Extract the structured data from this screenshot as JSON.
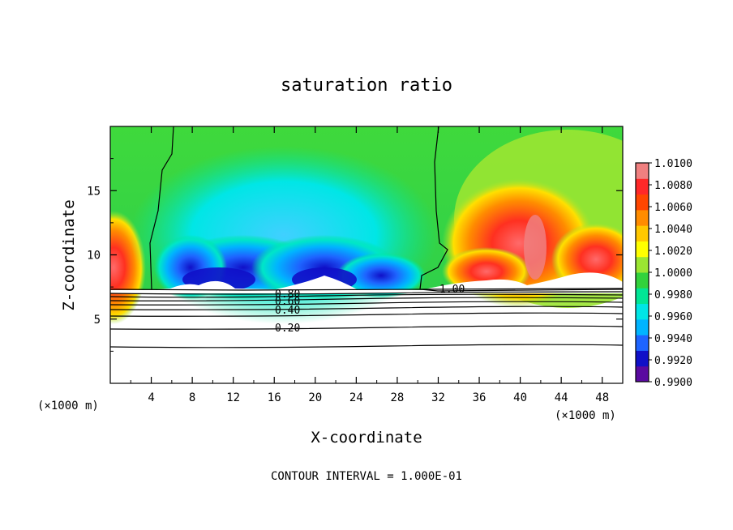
{
  "chart_data": {
    "type": "heatmap",
    "title": "saturation ratio",
    "xlabel": "X-coordinate",
    "ylabel": "Z-coordinate",
    "x_unit": "(×1000 m)",
    "footer": "CONTOUR INTERVAL = 1.000E-01",
    "xlim": [
      0,
      50
    ],
    "ylim": [
      0,
      20
    ],
    "x_ticks": [
      4,
      8,
      12,
      16,
      20,
      24,
      28,
      32,
      36,
      40,
      44,
      48
    ],
    "y_ticks": [
      5,
      10,
      15
    ],
    "grid": false,
    "legend": "right",
    "colorbar": {
      "ticks": [
        "1.0100",
        "1.0080",
        "1.0060",
        "1.0040",
        "1.0020",
        "1.0000",
        "0.9980",
        "0.9960",
        "0.9940",
        "0.9920",
        "0.9900"
      ],
      "min": 0.99,
      "max": 1.01,
      "colors": [
        "#5a0aa0",
        "#1010c8",
        "#1e64ff",
        "#00b4ff",
        "#00e6e6",
        "#00e696",
        "#32d23c",
        "#9be632",
        "#ffff00",
        "#ffc800",
        "#ff8c00",
        "#ff4600",
        "#ff2828",
        "#f08080"
      ]
    },
    "contour_labels": [
      {
        "text": "1.00",
        "x": 33.2,
        "z": 7.3
      },
      {
        "text": "0.80",
        "x": 16.4,
        "z": 6.9
      },
      {
        "text": "0.60",
        "x": 16.4,
        "z": 6.3
      },
      {
        "text": "0.40",
        "x": 16.4,
        "z": 5.6
      },
      {
        "text": "0.20",
        "x": 16.4,
        "z": 4.3
      }
    ]
  }
}
